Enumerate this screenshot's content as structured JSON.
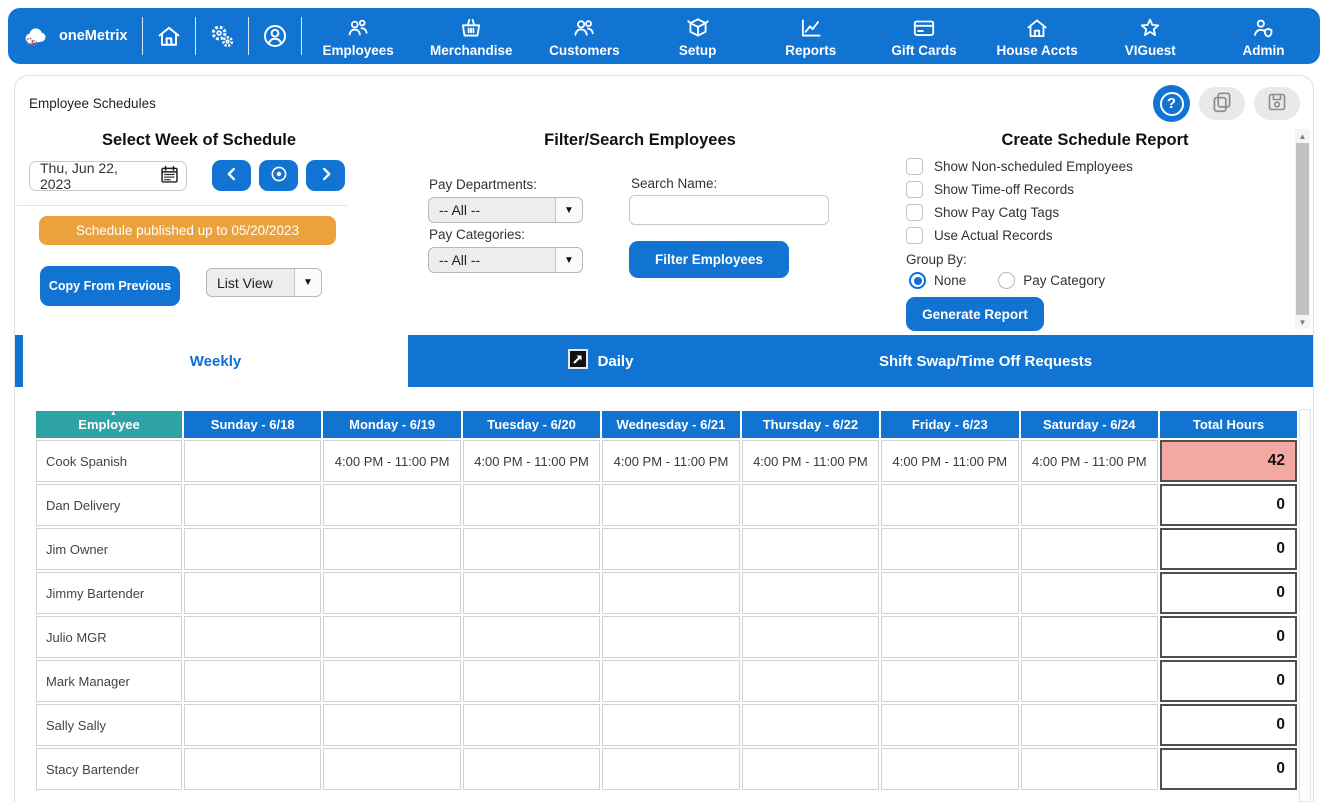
{
  "nav": {
    "brand": "oneMetrix",
    "items": [
      {
        "label": "Employees"
      },
      {
        "label": "Merchandise"
      },
      {
        "label": "Customers"
      },
      {
        "label": "Setup"
      },
      {
        "label": "Reports"
      },
      {
        "label": "Gift Cards"
      },
      {
        "label": "House Accts"
      },
      {
        "label": "VIGuest"
      },
      {
        "label": "Admin"
      }
    ]
  },
  "page": {
    "title": "Employee Schedules"
  },
  "week_panel": {
    "heading": "Select Week of Schedule",
    "date_value": "Thu, Jun 22, 2023",
    "published_banner": "Schedule published up to 05/20/2023",
    "copy_button": "Copy From Previous",
    "view_value": "List View"
  },
  "filter_panel": {
    "heading": "Filter/Search Employees",
    "pay_departments_label": "Pay Departments:",
    "pay_departments_value": "-- All --",
    "pay_categories_label": "Pay Categories:",
    "pay_categories_value": "-- All --",
    "search_label": "Search Name:",
    "search_value": "",
    "filter_button": "Filter Employees"
  },
  "report_panel": {
    "heading": "Create Schedule Report",
    "checkboxes": [
      "Show Non-scheduled Employees",
      "Show Time-off Records",
      "Show Pay Catg Tags",
      "Use Actual Records"
    ],
    "group_by_label": "Group By:",
    "radio_none": "None",
    "radio_pay_category": "Pay Category",
    "generate_button": "Generate Report"
  },
  "tabs": [
    {
      "label": "Weekly",
      "active": true
    },
    {
      "label": "Daily",
      "active": false
    },
    {
      "label": "Shift Swap/Time Off Requests",
      "active": false
    }
  ],
  "schedule_table": {
    "columns": [
      "Employee",
      "Sunday - 6/18",
      "Monday - 6/19",
      "Tuesday - 6/20",
      "Wednesday - 6/21",
      "Thursday - 6/22",
      "Friday - 6/23",
      "Saturday - 6/24",
      "Total Hours"
    ],
    "rows": [
      {
        "employee": "Cook Spanish",
        "days": [
          "",
          "4:00 PM - 11:00 PM",
          "4:00 PM - 11:00 PM",
          "4:00 PM - 11:00 PM",
          "4:00 PM - 11:00 PM",
          "4:00 PM - 11:00 PM",
          "4:00 PM - 11:00 PM"
        ],
        "total": "42",
        "over": true
      },
      {
        "employee": "Dan Delivery",
        "days": [
          "",
          "",
          "",
          "",
          "",
          "",
          ""
        ],
        "total": "0",
        "over": false
      },
      {
        "employee": "Jim Owner",
        "days": [
          "",
          "",
          "",
          "",
          "",
          "",
          ""
        ],
        "total": "0",
        "over": false
      },
      {
        "employee": "Jimmy Bartender",
        "days": [
          "",
          "",
          "",
          "",
          "",
          "",
          ""
        ],
        "total": "0",
        "over": false
      },
      {
        "employee": "Julio MGR",
        "days": [
          "",
          "",
          "",
          "",
          "",
          "",
          ""
        ],
        "total": "0",
        "over": false
      },
      {
        "employee": "Mark Manager",
        "days": [
          "",
          "",
          "",
          "",
          "",
          "",
          ""
        ],
        "total": "0",
        "over": false
      },
      {
        "employee": "Sally Sally",
        "days": [
          "",
          "",
          "",
          "",
          "",
          "",
          ""
        ],
        "total": "0",
        "over": false
      },
      {
        "employee": "Stacy Bartender",
        "days": [
          "",
          "",
          "",
          "",
          "",
          "",
          ""
        ],
        "total": "0",
        "over": false
      }
    ]
  },
  "icons": {
    "help": "?",
    "sort_asc": "▲",
    "dropdown_arrow": "▼",
    "scroll_up": "▲",
    "scroll_down": "▼"
  },
  "colors": {
    "primary_blue": "#1173d2",
    "banner_orange": "#eba23c",
    "employee_header_teal": "#2ea3a5",
    "over_hours_pink": "#f4a8a4"
  }
}
